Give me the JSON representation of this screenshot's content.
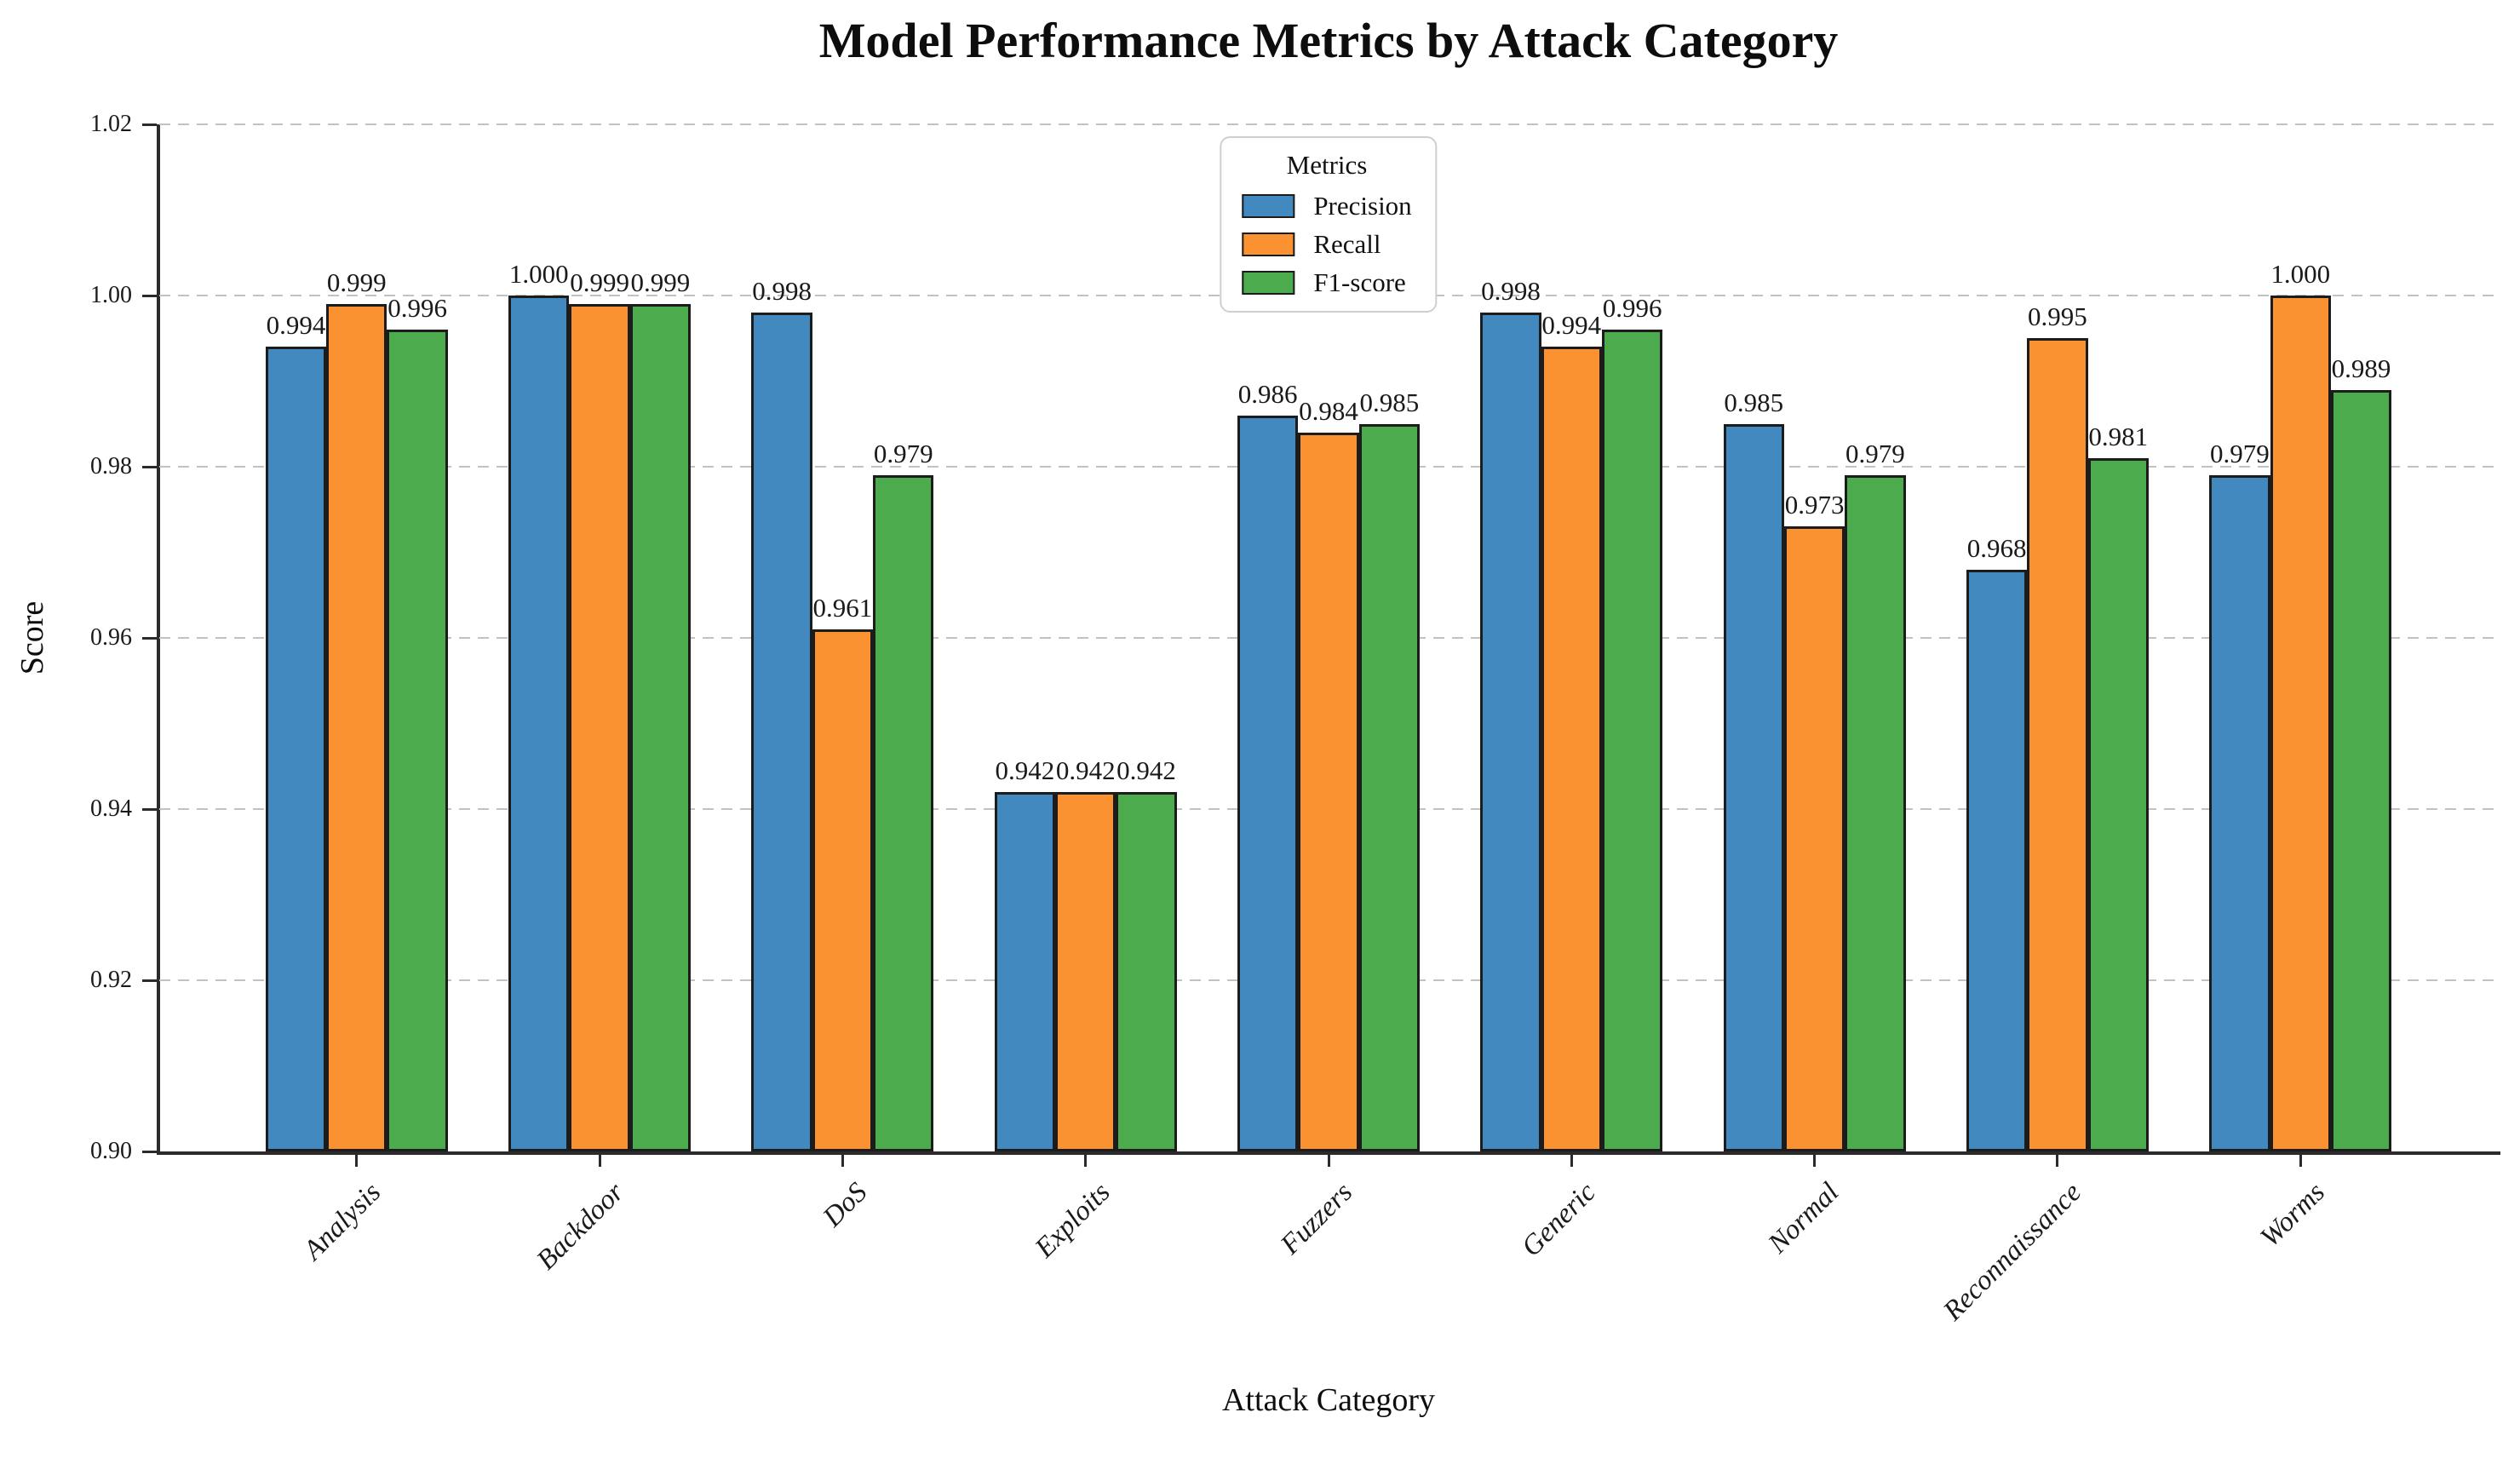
{
  "chart_data": {
    "type": "bar",
    "title": "Model Performance Metrics by Attack Category",
    "xlabel": "Attack Category",
    "ylabel": "Score",
    "ylim": [
      0.9,
      1.02
    ],
    "ytick_labels": [
      "0.90",
      "0.92",
      "0.94",
      "0.96",
      "0.98",
      "1.00",
      "1.02"
    ],
    "grid": "horizontal-dashed",
    "legend": {
      "title": "Metrics",
      "position": "upper center"
    },
    "categories": [
      "Analysis",
      "Backdoor",
      "DoS",
      "Exploits",
      "Fuzzers",
      "Generic",
      "Normal",
      "Reconnaissance",
      "Worms"
    ],
    "series": [
      {
        "name": "Precision",
        "color": "#4189bf",
        "values": [
          0.994,
          1.0,
          0.998,
          0.942,
          0.986,
          0.998,
          0.985,
          0.968,
          0.979
        ]
      },
      {
        "name": "Recall",
        "color": "#fb9232",
        "values": [
          0.999,
          0.999,
          0.961,
          0.942,
          0.984,
          0.994,
          0.973,
          0.995,
          1.0
        ]
      },
      {
        "name": "F1-score",
        "color": "#4cab4c",
        "values": [
          0.996,
          0.999,
          0.979,
          0.942,
          0.985,
          0.996,
          0.979,
          0.981,
          0.989
        ]
      }
    ],
    "bar_label_decimals": 3,
    "colors": {
      "bar_edge": "#1c1c1c",
      "grid": "#c2c2c2",
      "spine": "#2b2b2b",
      "text": "#1a1a1a",
      "legend_border": "#cfcfcf",
      "background": "#ffffff"
    }
  }
}
